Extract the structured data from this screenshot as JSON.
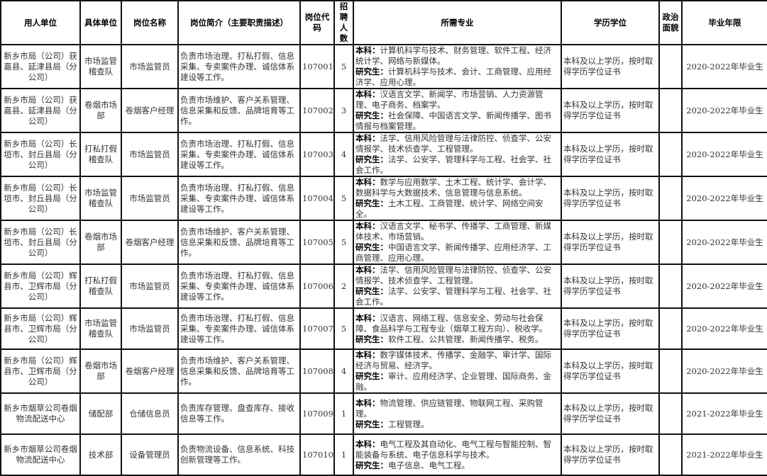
{
  "headers": [
    "用人单位",
    "具体单位",
    "岗位名称",
    "岗位简介（主要职责描述）",
    "岗位代码",
    "招聘人数",
    "所需专业",
    "学历学位",
    "政治面貌",
    "毕业年限"
  ],
  "labels": {
    "undergrad": "本科：",
    "grad": "研究生："
  },
  "rows": [
    {
      "employer": "新乡市局（公司）获嘉县、延津县局（分公司）",
      "dept": "市场监管稽查队",
      "position": "市场监管员",
      "duties": "负责市场治理、打私打假、信息采集、专卖案件办理、诚信体系建设等工作。",
      "code": "107001",
      "count": "5",
      "undergrad": "计算机科学与技术、财务管理、软件工程、经济统计学、网络与新媒体。",
      "grad": "计算机科学与技术、会计、工商管理、应用经济学、应用心理。",
      "degree": "本科及以上学历，按时取得学历学位证书",
      "political": "",
      "years": "2020-2022年毕业生"
    },
    {
      "employer": "新乡市局（公司）获嘉县、延津县局（分公司）",
      "dept": "卷烟市场部",
      "position": "卷烟客户经理",
      "duties": "负责市场维护、客户关系管理、信息采集和反馈、品牌培育等工作。",
      "code": "107002",
      "count": "3",
      "undergrad": "汉语言文学、新闻学、市场营销、人力资源管理、电子商务、档案学。",
      "grad": "社会保障、中国语言文学、新闻传播学、图书情报与档案管理。",
      "degree": "本科及以上学历，按时取得学历学位证书",
      "political": "",
      "years": "2020-2022年毕业生"
    },
    {
      "employer": "新乡市局（公司）长垣市、封丘县局（分公司）",
      "dept": "打私打假稽查队",
      "position": "市场监管员",
      "duties": "负责市场治理、打私打假、信息采集、专卖案件办理、诚信体系建设等工作。",
      "code": "107003",
      "count": "4",
      "undergrad": "法学、信用风险管理与法律防控、侦查学、公安情报学、技术侦查学、工程管理。",
      "grad": "法学、公安学、管理科学与工程、社会学、社会工作。",
      "degree": "本科及以上学历，按时取得学历学位证书",
      "political": "",
      "years": "2020-2022年毕业生"
    },
    {
      "employer": "新乡市局（公司）长垣市、封丘县局（分公司）",
      "dept": "市场监管稽查队",
      "position": "市场监管员",
      "duties": "负责市场治理、打私打假、信息采集、专卖案件办理、诚信体系建设等工作。",
      "code": "107004",
      "count": "5",
      "undergrad": "数学与应用数学、土木工程、统计学、会计学、数据科学与大数据技术、信息管理与信息系统。",
      "grad": "土木工程、工商管理、统计学、网络空间安全。",
      "degree": "本科及以上学历，按时取得学历学位证书",
      "political": "",
      "years": "2020-2022年毕业生"
    },
    {
      "employer": "新乡市局（公司）长垣市、封丘县局（分公司）",
      "dept": "卷烟市场部",
      "position": "卷烟客户经理",
      "duties": "负责市场维护、客户关系管理、信息采集和反馈、品牌培育等工作。",
      "code": "107005",
      "count": "5",
      "undergrad": "汉语言文学、秘书学、传播学、工商管理、新媒体技术、市场营销。",
      "grad": "中国语言文学、新闻传播学、应用经济学、工商管理、应用心理。",
      "degree": "本科及以上学历，按时取得学历学位证书",
      "political": "",
      "years": "2020-2022年毕业生"
    },
    {
      "employer": "新乡市局（公司）辉县市、卫辉市局（分公司）",
      "dept": "打私打假稽查队",
      "position": "市场监管员",
      "duties": "负责市场治理、打私打假、信息采集、专卖案件办理、诚信体系建设等工作。",
      "code": "107006",
      "count": "2",
      "undergrad": "法学、信用风险管理与法律防控、侦查学、公安情报学、技术侦查学、工程管理。",
      "grad": "法学、公安学、管理科学与工程、社会学、社会工作。",
      "degree": "本科及以上学历，按时取得学历学位证书",
      "political": "",
      "years": "2020-2022年毕业生"
    },
    {
      "employer": "新乡市局（公司）辉县市、卫辉市局（分公司）",
      "dept": "市场监管稽查队",
      "position": "市场监管员",
      "duties": "负责市场治理、打私打假、信息采集、专卖案件办理、诚信体系建设等工作。",
      "code": "107007",
      "count": "5",
      "undergrad": "汉语言、网络工程、信息安全、劳动与社会保障、食品科学与工程专业（烟草工程方向）、税收学。",
      "grad": "软件工程、公共管理、新闻传播学、税务。",
      "degree": "本科及以上学历，按时取得学历学位证书",
      "political": "",
      "years": "2020-2022年毕业生"
    },
    {
      "employer": "新乡市局（公司）辉县市、卫辉市局（分公司）",
      "dept": "卷烟市场部",
      "position": "卷烟客户经理",
      "duties": "负责市场维护、客户关系管理、信息采集和反馈、品牌培育等工作。",
      "code": "107008",
      "count": "4",
      "undergrad": "数字媒体技术、传播学、金融学、审计学、国际经济与贸易、经济学。",
      "grad": "审计、应用经济学、企业管理、国际商务、金融。",
      "degree": "本科及以上学历，按时取得学历学位证书",
      "political": "",
      "years": "2020-2022年毕业生"
    },
    {
      "employer": "新乡市烟草公司卷烟物流配送中心",
      "dept": "储配部",
      "position": "仓储信息员",
      "duties": "负责库存管理、盘查库存、接收信息等工作。",
      "code": "107009",
      "count": "1",
      "undergrad": "物流管理、供应链管理、物联网工程、采购管理。",
      "grad": "工程管理。",
      "degree": "本科及以上学历，按时取得学历学位证书",
      "political": "",
      "years": "2021-2022年毕业生"
    },
    {
      "employer": "新乡市烟草公司卷烟物流配送中心",
      "dept": "技术部",
      "position": "设备管理员",
      "duties": "负责物流设备、信息系统、科技创新管理等工作。",
      "code": "107010",
      "count": "1",
      "undergrad": "电气工程及其自动化、电气工程与智能控制、智能装备与系统、电子信息科学与技术。",
      "grad": "电子信息、电气工程。",
      "degree": "本科及以上学历，按时取得学历学位证书",
      "political": "",
      "years": "2021-2022年毕业生"
    }
  ]
}
